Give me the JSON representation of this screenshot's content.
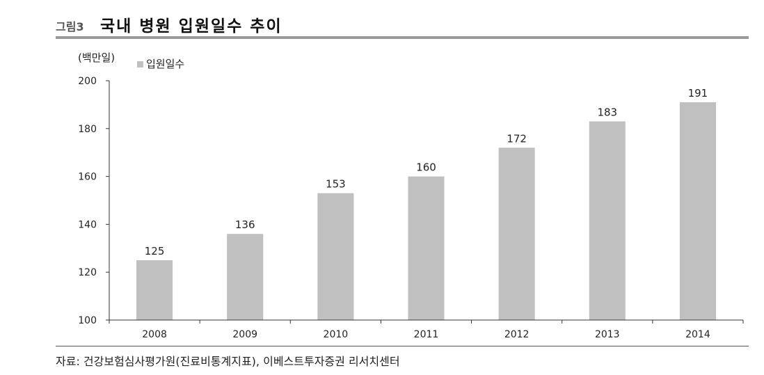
{
  "figure": {
    "label": "그림3",
    "title": "국내 병원 입원일수 추이"
  },
  "chart_data": {
    "type": "bar",
    "unit": "(백만일)",
    "categories": [
      "2008",
      "2009",
      "2010",
      "2011",
      "2012",
      "2013",
      "2014"
    ],
    "series": [
      {
        "name": "입원일수",
        "values": [
          125,
          136,
          153,
          160,
          172,
          183,
          191
        ],
        "color": "#c0c0c0"
      }
    ],
    "ylim": [
      100,
      200
    ],
    "yticks": [
      100,
      120,
      140,
      160,
      180,
      200
    ],
    "grid": false,
    "legend": "top-left",
    "data_labels": true
  },
  "source": "자료: 건강보험심사평가원(진료비통계지표), 이베스트투자증권 리서치센터"
}
